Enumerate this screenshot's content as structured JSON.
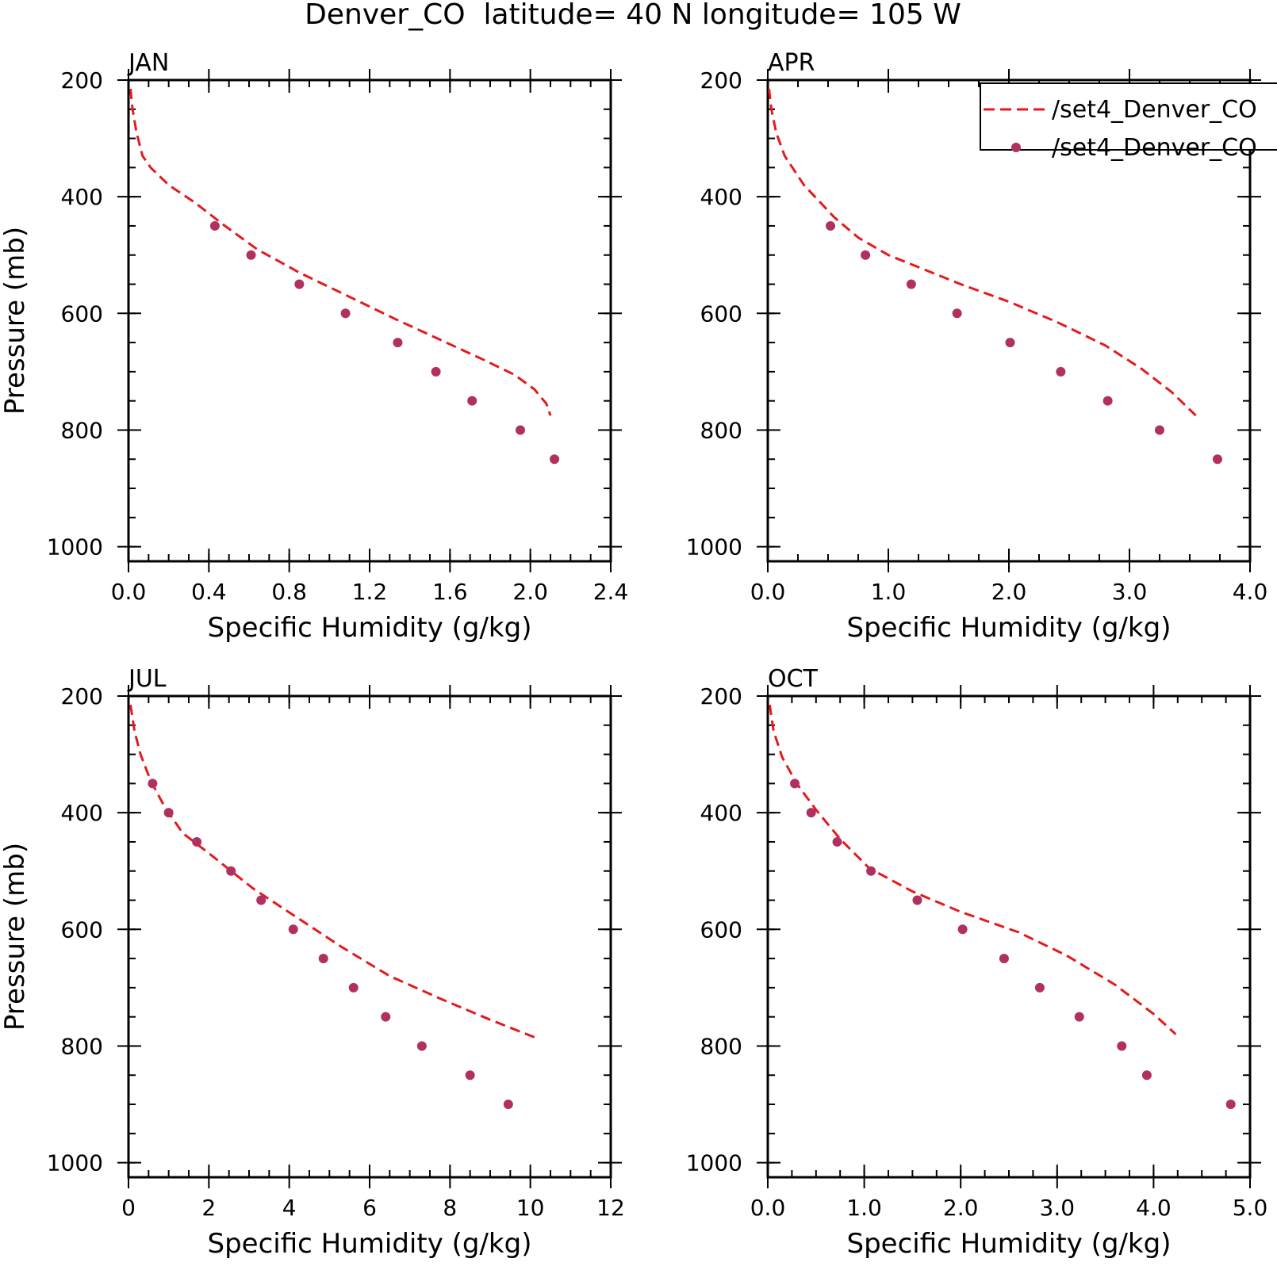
{
  "title": "Denver_CO  latitude= 40 N longitude= 105 W",
  "legend": {
    "placement": "top-right of APR panel",
    "entries": [
      {
        "label": "/set4_Denver_CO",
        "style": "dashed-line",
        "color": "#e41a1c"
      },
      {
        "label": "/set4_Denver_CO",
        "style": "dot",
        "color": "#b03060"
      }
    ]
  },
  "colors": {
    "model_line": "#e41a1c",
    "obs_dot": "#b03060",
    "axis": "#000000"
  },
  "chart_data": [
    {
      "type": "line",
      "panel": "JAN",
      "xlabel": "Specific Humidity (g/kg)",
      "ylabel": "Pressure (mb)",
      "xlim": [
        0,
        2.4
      ],
      "ylim": [
        1025,
        200
      ],
      "y_reversed": true,
      "xticks": [
        "0.0",
        "0.4",
        "0.8",
        "1.2",
        "1.6",
        "2.0",
        "2.4"
      ],
      "xtick_values": [
        0,
        0.4,
        0.8,
        1.2,
        1.6,
        2.0,
        2.4
      ],
      "x_minor_step": 0.1,
      "yticks": [
        "200",
        "400",
        "600",
        "800",
        "1000"
      ],
      "ytick_values": [
        200,
        400,
        600,
        800,
        1000
      ],
      "y_minor_step": 50,
      "series": [
        {
          "style": "dashed-line",
          "x": [
            0.01,
            0.02,
            0.04,
            0.07,
            0.11,
            0.2,
            0.33,
            0.48,
            0.64,
            0.85,
            1.09,
            1.33,
            1.55,
            1.77,
            1.92,
            2.02,
            2.08,
            2.1
          ],
          "y": [
            215,
            250,
            290,
            330,
            350,
            380,
            410,
            450,
            490,
            530,
            570,
            610,
            645,
            680,
            705,
            730,
            755,
            775
          ]
        },
        {
          "style": "dot",
          "x": [
            0.43,
            0.61,
            0.85,
            1.08,
            1.34,
            1.53,
            1.71,
            1.95,
            2.12
          ],
          "y": [
            450,
            500,
            550,
            600,
            650,
            700,
            750,
            800,
            850
          ]
        }
      ]
    },
    {
      "type": "line",
      "panel": "APR",
      "xlabel": "Specific Humidity (g/kg)",
      "ylabel": "",
      "xlim": [
        0,
        4.0
      ],
      "ylim": [
        1025,
        200
      ],
      "y_reversed": true,
      "xticks": [
        "0.0",
        "1.0",
        "2.0",
        "3.0",
        "4.0"
      ],
      "xtick_values": [
        0,
        1,
        2,
        3,
        4
      ],
      "x_minor_step": 0.25,
      "yticks": [
        "200",
        "400",
        "600",
        "800",
        "1000"
      ],
      "ytick_values": [
        200,
        400,
        600,
        800,
        1000
      ],
      "y_minor_step": 50,
      "series": [
        {
          "style": "dashed-line",
          "x": [
            0.01,
            0.03,
            0.07,
            0.14,
            0.3,
            0.55,
            0.75,
            1.0,
            1.3,
            1.6,
            2.0,
            2.4,
            2.8,
            3.1,
            3.35,
            3.55
          ],
          "y": [
            215,
            250,
            290,
            330,
            380,
            435,
            470,
            500,
            525,
            550,
            580,
            615,
            655,
            695,
            735,
            775
          ]
        },
        {
          "style": "dot",
          "x": [
            0.52,
            0.81,
            1.19,
            1.57,
            2.01,
            2.43,
            2.82,
            3.25,
            3.73
          ],
          "y": [
            450,
            500,
            550,
            600,
            650,
            700,
            750,
            800,
            850
          ]
        }
      ]
    },
    {
      "type": "line",
      "panel": "JUL",
      "xlabel": "Specific Humidity (g/kg)",
      "ylabel": "Pressure (mb)",
      "xlim": [
        0,
        12
      ],
      "ylim": [
        1025,
        200
      ],
      "y_reversed": true,
      "xticks": [
        "0",
        "2",
        "4",
        "6",
        "8",
        "10",
        "12"
      ],
      "xtick_values": [
        0,
        2,
        4,
        6,
        8,
        10,
        12
      ],
      "x_minor_step": 0.5,
      "yticks": [
        "200",
        "400",
        "600",
        "800",
        "1000"
      ],
      "ytick_values": [
        200,
        400,
        600,
        800,
        1000
      ],
      "y_minor_step": 50,
      "series": [
        {
          "style": "dashed-line",
          "x": [
            0.05,
            0.15,
            0.3,
            0.55,
            0.9,
            1.35,
            2.1,
            3.1,
            4.2,
            5.3,
            6.5,
            7.8,
            9.0,
            10.1
          ],
          "y": [
            215,
            260,
            300,
            345,
            390,
            435,
            475,
            530,
            580,
            630,
            680,
            720,
            755,
            785
          ]
        },
        {
          "style": "dot",
          "x": [
            0.6,
            1.0,
            1.7,
            2.55,
            3.3,
            4.1,
            4.85,
            5.6,
            6.4,
            7.3,
            8.5,
            9.45
          ],
          "y": [
            350,
            400,
            450,
            500,
            550,
            600,
            650,
            700,
            750,
            800,
            850,
            900
          ]
        }
      ]
    },
    {
      "type": "line",
      "panel": "OCT",
      "xlabel": "Specific Humidity (g/kg)",
      "ylabel": "",
      "xlim": [
        0,
        5.0
      ],
      "ylim": [
        1025,
        200
      ],
      "y_reversed": true,
      "xticks": [
        "0.0",
        "1.0",
        "2.0",
        "3.0",
        "4.0",
        "5.0"
      ],
      "xtick_values": [
        0,
        1,
        2,
        3,
        4,
        5
      ],
      "x_minor_step": 0.25,
      "yticks": [
        "200",
        "400",
        "600",
        "800",
        "1000"
      ],
      "ytick_values": [
        200,
        400,
        600,
        800,
        1000
      ],
      "y_minor_step": 50,
      "series": [
        {
          "style": "dashed-line",
          "x": [
            0.02,
            0.06,
            0.15,
            0.3,
            0.5,
            0.75,
            1.05,
            1.5,
            2.0,
            2.6,
            3.1,
            3.6,
            4.0,
            4.23
          ],
          "y": [
            215,
            260,
            305,
            350,
            395,
            445,
            495,
            535,
            570,
            605,
            645,
            695,
            745,
            780
          ]
        },
        {
          "style": "dot",
          "x": [
            0.28,
            0.45,
            0.72,
            1.07,
            1.55,
            2.02,
            2.45,
            2.82,
            3.23,
            3.67,
            3.93,
            4.8
          ],
          "y": [
            350,
            400,
            450,
            500,
            550,
            600,
            650,
            700,
            750,
            800,
            850,
            900
          ]
        }
      ]
    }
  ]
}
